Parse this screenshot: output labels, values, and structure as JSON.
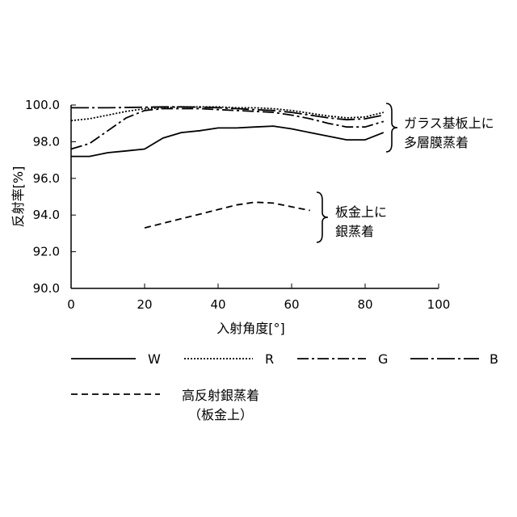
{
  "chart_data": {
    "type": "line",
    "xlabel": "入射角度[°]",
    "ylabel": "反射率[%]",
    "xlim": [
      0,
      100
    ],
    "ylim": [
      90,
      100
    ],
    "x_ticks": [
      "0",
      "20",
      "40",
      "60",
      "80",
      "100"
    ],
    "y_ticks": [
      "90.0",
      "92.0",
      "94.0",
      "96.0",
      "98.0",
      "100.0"
    ],
    "grid": false,
    "series": [
      {
        "name": "W",
        "dash": "solid",
        "x": [
          0,
          5,
          10,
          15,
          20,
          25,
          30,
          35,
          40,
          45,
          50,
          55,
          60,
          65,
          70,
          75,
          80,
          85
        ],
        "y": [
          97.2,
          97.2,
          97.4,
          97.5,
          97.6,
          98.2,
          98.5,
          98.6,
          98.75,
          98.75,
          98.8,
          98.85,
          98.7,
          98.5,
          98.3,
          98.1,
          98.1,
          98.5
        ]
      },
      {
        "name": "R",
        "dash": "dotted",
        "x": [
          0,
          5,
          10,
          15,
          20,
          25,
          30,
          35,
          40,
          45,
          50,
          55,
          60,
          65,
          70,
          75,
          80,
          85
        ],
        "y": [
          99.15,
          99.25,
          99.45,
          99.65,
          99.8,
          99.85,
          99.9,
          99.9,
          99.9,
          99.85,
          99.85,
          99.8,
          99.7,
          99.55,
          99.4,
          99.3,
          99.35,
          99.6
        ]
      },
      {
        "name": "G",
        "dash": "dashdot",
        "x": [
          0,
          5,
          10,
          15,
          20,
          25,
          30,
          35,
          40,
          45,
          50,
          55,
          60,
          65,
          70,
          75,
          80,
          85
        ],
        "y": [
          97.6,
          97.9,
          98.6,
          99.3,
          99.7,
          99.8,
          99.8,
          99.8,
          99.75,
          99.7,
          99.65,
          99.6,
          99.45,
          99.25,
          99.0,
          98.8,
          98.8,
          99.1
        ]
      },
      {
        "name": "B",
        "dash": "longdashdot",
        "x": [
          0,
          10,
          20,
          25,
          30,
          35,
          40,
          45,
          50,
          55,
          60,
          65,
          70,
          75,
          80,
          85
        ],
        "y": [
          99.85,
          99.85,
          99.88,
          99.9,
          99.9,
          99.88,
          99.85,
          99.8,
          99.75,
          99.7,
          99.6,
          99.45,
          99.3,
          99.2,
          99.25,
          99.45
        ]
      },
      {
        "name": "高反射銀蒸着（板金上）",
        "dash": "dashed",
        "x": [
          20,
          25,
          30,
          35,
          40,
          45,
          50,
          55,
          60,
          65
        ],
        "y": [
          93.3,
          93.55,
          93.8,
          94.05,
          94.3,
          94.55,
          94.7,
          94.65,
          94.45,
          94.25
        ]
      }
    ],
    "annotations": [
      {
        "id": "glass",
        "lines": [
          "ガラス基板上に",
          "多層膜蒸着"
        ]
      },
      {
        "id": "metal",
        "lines": [
          "板金上に",
          "銀蒸着"
        ]
      }
    ],
    "legend": {
      "placement": "bottom",
      "entries": [
        {
          "label": "W",
          "dash": "solid"
        },
        {
          "label": "R",
          "dash": "dotted"
        },
        {
          "label": "G",
          "dash": "dashdot"
        },
        {
          "label": "B",
          "dash": "longdashdot"
        },
        {
          "label_lines": [
            "高反射銀蒸着",
            "（板金上）"
          ],
          "dash": "dashed"
        }
      ]
    }
  }
}
